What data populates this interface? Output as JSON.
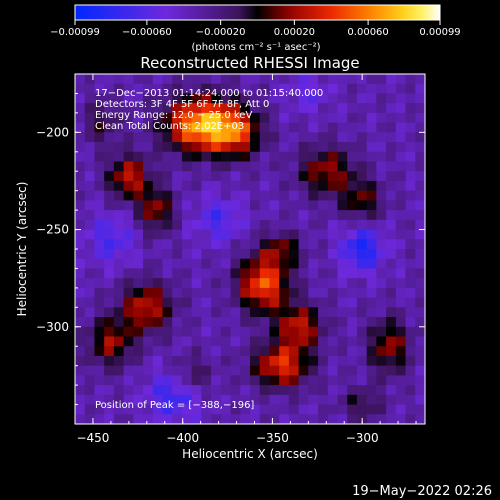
{
  "chart_data": {
    "type": "heatmap",
    "title": "Reconstructed RHESSI Image",
    "xlabel": "Heliocentric X (arcsec)",
    "ylabel": "Heliocentric Y (arcsec)",
    "xlim": [
      -460,
      -265
    ],
    "ylim": [
      -350,
      -170
    ],
    "x_ticks": [
      -450,
      -400,
      -350,
      -300
    ],
    "x_tick_labels": [
      "−450",
      "−400",
      "−350",
      "−300"
    ],
    "y_ticks": [
      -200,
      -250,
      -300
    ],
    "y_tick_labels": [
      "−200",
      "−250",
      "−300"
    ],
    "colorbar": {
      "range": [
        -0.00099,
        0.00099
      ],
      "ticks": [
        -0.00099,
        -0.0006,
        -0.0002,
        0.0002,
        0.0006,
        0.00099
      ],
      "tick_labels": [
        "−0.00099",
        "−0.00060",
        "−0.00020",
        "0.00020",
        "0.00060",
        "0.00099"
      ],
      "unit_label": "(photons cm⁻² s⁻¹ asec⁻²)"
    },
    "annotations": [
      "17−Dec−2013 01:14:24.000 to 01:15:40.000",
      "Detectors: 3F 4F 5F 6F 7F 8F, Att 0",
      "Energy Range: 12.0 − 25.0 keV",
      "Clean     Total Counts: 2.02E+03"
    ],
    "peak_label": "Position of Peak = [−388,−196]",
    "peak": [
      -388,
      -196
    ],
    "sources": [
      {
        "x": -390,
        "y": -196,
        "v": 0.00099,
        "sx": 14,
        "sy": 10
      },
      {
        "x": -370,
        "y": -200,
        "v": 0.0006,
        "sx": 10,
        "sy": 9
      },
      {
        "x": -430,
        "y": -223,
        "v": 0.0006,
        "sx": 8,
        "sy": 8
      },
      {
        "x": -415,
        "y": -240,
        "v": 0.0005,
        "sx": 7,
        "sy": 8
      },
      {
        "x": -320,
        "y": -220,
        "v": 0.0005,
        "sx": 11,
        "sy": 9
      },
      {
        "x": -300,
        "y": -235,
        "v": 0.0004,
        "sx": 8,
        "sy": 8
      },
      {
        "x": -345,
        "y": -260,
        "v": 0.0004,
        "sx": 8,
        "sy": 6
      },
      {
        "x": -355,
        "y": -278,
        "v": 0.0008,
        "sx": 10,
        "sy": 10
      },
      {
        "x": -335,
        "y": -300,
        "v": 0.0006,
        "sx": 9,
        "sy": 8
      },
      {
        "x": -345,
        "y": -320,
        "v": 0.0007,
        "sx": 11,
        "sy": 8
      },
      {
        "x": -420,
        "y": -290,
        "v": 0.0006,
        "sx": 10,
        "sy": 9
      },
      {
        "x": -440,
        "y": -308,
        "v": 0.0005,
        "sx": 9,
        "sy": 9
      },
      {
        "x": -395,
        "y": -325,
        "v": 0.0003,
        "sx": 8,
        "sy": 7
      },
      {
        "x": -285,
        "y": -310,
        "v": 0.0005,
        "sx": 8,
        "sy": 10
      },
      {
        "x": -300,
        "y": -340,
        "v": 0.0003,
        "sx": 8,
        "sy": 6
      },
      {
        "x": -445,
        "y": -195,
        "v": 0.0003,
        "sx": 7,
        "sy": 8
      },
      {
        "x": -405,
        "y": -335,
        "v": -0.0004,
        "sx": 10,
        "sy": 9
      },
      {
        "x": -380,
        "y": -245,
        "v": -0.0003,
        "sx": 9,
        "sy": 8
      },
      {
        "x": -300,
        "y": -260,
        "v": -0.0005,
        "sx": 8,
        "sy": 8
      },
      {
        "x": -440,
        "y": -255,
        "v": -0.0003,
        "sx": 9,
        "sy": 9
      },
      {
        "x": -330,
        "y": -180,
        "v": -0.0002,
        "sx": 8,
        "sy": 7
      }
    ]
  },
  "footer": {
    "date_label": "19−May−2022 02:26"
  },
  "colors": {
    "background": "#000000",
    "foreground": "#ffffff"
  }
}
